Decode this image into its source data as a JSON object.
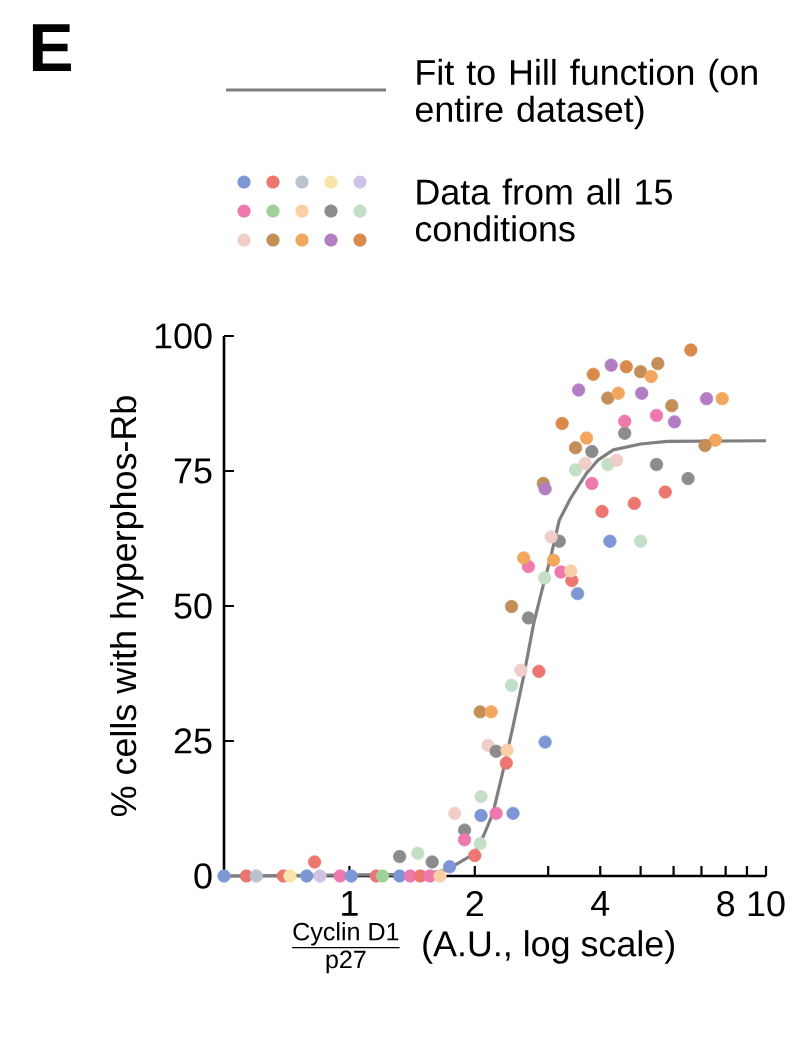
{
  "chart_data": {
    "type": "scatter",
    "title": "E",
    "xlabel": "\\frac{\\text{Cyclin D1}}{\\text{p27}}\\;\\;\\text{(A.U., log scale)}",
    "ylabel": "% cells with hyperphos-Rb",
    "log": "x",
    "xlim": [
      0.5,
      10
    ],
    "ylim": [
      0,
      100
    ],
    "xticks": [
      1,
      2,
      {
        "value": 3,
        "label": null
      },
      4,
      {
        "value": 5,
        "label": null
      },
      {
        "value": 6,
        "label": null
      },
      {
        "value": 7,
        "label": null
      },
      8,
      {
        "value": 9,
        "label": null
      },
      10
    ],
    "yticks": [
      0,
      25,
      50,
      75,
      100
    ],
    "legend": "top",
    "series": [
      {
        "name": "Fit to Hill function (on entire dataset)",
        "type": "line",
        "color": "#7f7f7f",
        "marker": "none",
        "line_style": "solid",
        "x": [
          0.5,
          1.5,
          1.71,
          2.0,
          2.1,
          2.21,
          2.33,
          2.47,
          2.62,
          2.77,
          2.9,
          3.03,
          3.19,
          3.4,
          3.71,
          3.95,
          4.3,
          5.0,
          5.8,
          10
        ],
        "values": [
          0,
          0.3,
          1.1,
          4.2,
          7.5,
          11.6,
          19,
          27.7,
          37,
          46.8,
          53,
          58.5,
          65.9,
          70,
          74.6,
          77,
          78.9,
          80,
          80.5,
          80.6
        ]
      },
      {
        "name": "Data from all 15 conditions",
        "marker": "circle",
        "x": [
          0.5,
          0.566,
          0.598,
          0.694,
          0.72,
          0.79,
          0.85,
          0.95,
          1.01,
          1.16,
          1.2,
          1.32,
          1.4,
          1.48,
          1.56,
          1.65,
          0.825,
          1.32,
          1.46,
          1.58,
          1.74,
          2.0,
          1.79,
          1.89,
          1.89,
          2.06,
          2.07,
          2.07,
          2.25,
          2.47,
          2.06,
          2.19,
          2.15,
          2.25,
          2.39,
          2.38,
          2.95,
          2.45,
          2.58,
          2.85,
          2.45,
          2.69,
          2.94,
          3.53,
          3.22,
          3.42,
          3.4,
          2.69,
          3.09,
          2.62,
          3.19,
          3.05,
          4.22,
          5.0,
          4.04,
          4.83,
          5.73,
          6.5,
          2.92,
          2.95,
          3.82,
          3.49,
          3.68,
          4.17,
          4.38,
          5.46,
          3.82,
          3.49,
          3.71,
          4.58,
          7.56,
          7.14,
          3.24,
          4.58,
          5.46,
          6.03,
          5.94,
          3.55,
          4.17,
          4.42,
          5.03,
          7.2,
          7.85,
          3.85,
          4.25,
          4.62,
          5.0,
          5.3,
          5.5,
          6.6
        ],
        "values": [
          0,
          0,
          0,
          0,
          0,
          0,
          0,
          0,
          0,
          0,
          0,
          0,
          0,
          0,
          0,
          0,
          2.6,
          3.6,
          4.2,
          2.6,
          1.7,
          3.8,
          11.6,
          8.5,
          6.7,
          6.0,
          14.7,
          11.2,
          11.6,
          11.6,
          30.4,
          30.4,
          24.2,
          23.1,
          23.3,
          20.9,
          24.8,
          35.3,
          38.1,
          37.9,
          49.9,
          47.8,
          55.2,
          52.3,
          56.3,
          54.7,
          56.5,
          57.3,
          58.5,
          58.9,
          62.0,
          62.8,
          62.0,
          62.0,
          67.5,
          69.0,
          71.1,
          73.6,
          72.7,
          71.7,
          72.7,
          75.2,
          76.4,
          76.2,
          77.0,
          76.2,
          78.6,
          79.3,
          81.1,
          82.0,
          80.7,
          79.7,
          83.8,
          84.2,
          85.3,
          84.1,
          87.1,
          90.0,
          88.5,
          89.4,
          89.4,
          88.4,
          88.4,
          92.9,
          94.6,
          94.3,
          93.4,
          92.5,
          94.9,
          97.4
        ],
        "colors": [
          "#7d97d5",
          "#ec7670",
          "#b9c3cf",
          "#ec7670",
          "#f8e3a8",
          "#7d97d5",
          "#d0c4e6",
          "#ee79ae",
          "#7d97d5",
          "#ec7670",
          "#a0d09a",
          "#7d97d5",
          "#ee79ae",
          "#ec7670",
          "#ee79ae",
          "#f9cfa5",
          "#ec7670",
          "#8c8c8c",
          "#c3dfc6",
          "#8c8c8c",
          "#7d97d5",
          "#ec7670",
          "#f0cdc8",
          "#8c8c8c",
          "#ee79ae",
          "#c3dfc6",
          "#c3dfc6",
          "#7d97d5",
          "#ee79ae",
          "#7d97d5",
          "#c38e58",
          "#f3a65d",
          "#f0cdc8",
          "#8c8c8c",
          "#f9cfa5",
          "#ec7670",
          "#7d97d5",
          "#c3dfc6",
          "#f0cdc8",
          "#ec7670",
          "#c38e58",
          "#8c8c8c",
          "#c3dfc6",
          "#7d97d5",
          "#ee79ae",
          "#ec7670",
          "#f9cfa5",
          "#ee79ae",
          "#f3a65d",
          "#f3a65d",
          "#8c8c8c",
          "#f0cdc8",
          "#7d97d5",
          "#c3dfc6",
          "#ec7670",
          "#ec7670",
          "#ec7670",
          "#8c8c8c",
          "#c38e58",
          "#b27dc2",
          "#ee79ae",
          "#c3dfc6",
          "#f0cdc8",
          "#c3dfc6",
          "#f0cdc8",
          "#8c8c8c",
          "#8c8c8c",
          "#c38e58",
          "#f3a65d",
          "#8c8c8c",
          "#f3a65d",
          "#c38e58",
          "#d98a4a",
          "#ee79ae",
          "#ee79ae",
          "#b27dc2",
          "#c38e58",
          "#b27dc2",
          "#c38e58",
          "#f3a65d",
          "#b27dc2",
          "#b27dc2",
          "#f3a65d",
          "#d98a4a",
          "#b27dc2",
          "#d98a4a",
          "#c38e58",
          "#f3a65d",
          "#c38e58",
          "#d98a4a"
        ]
      }
    ]
  }
}
